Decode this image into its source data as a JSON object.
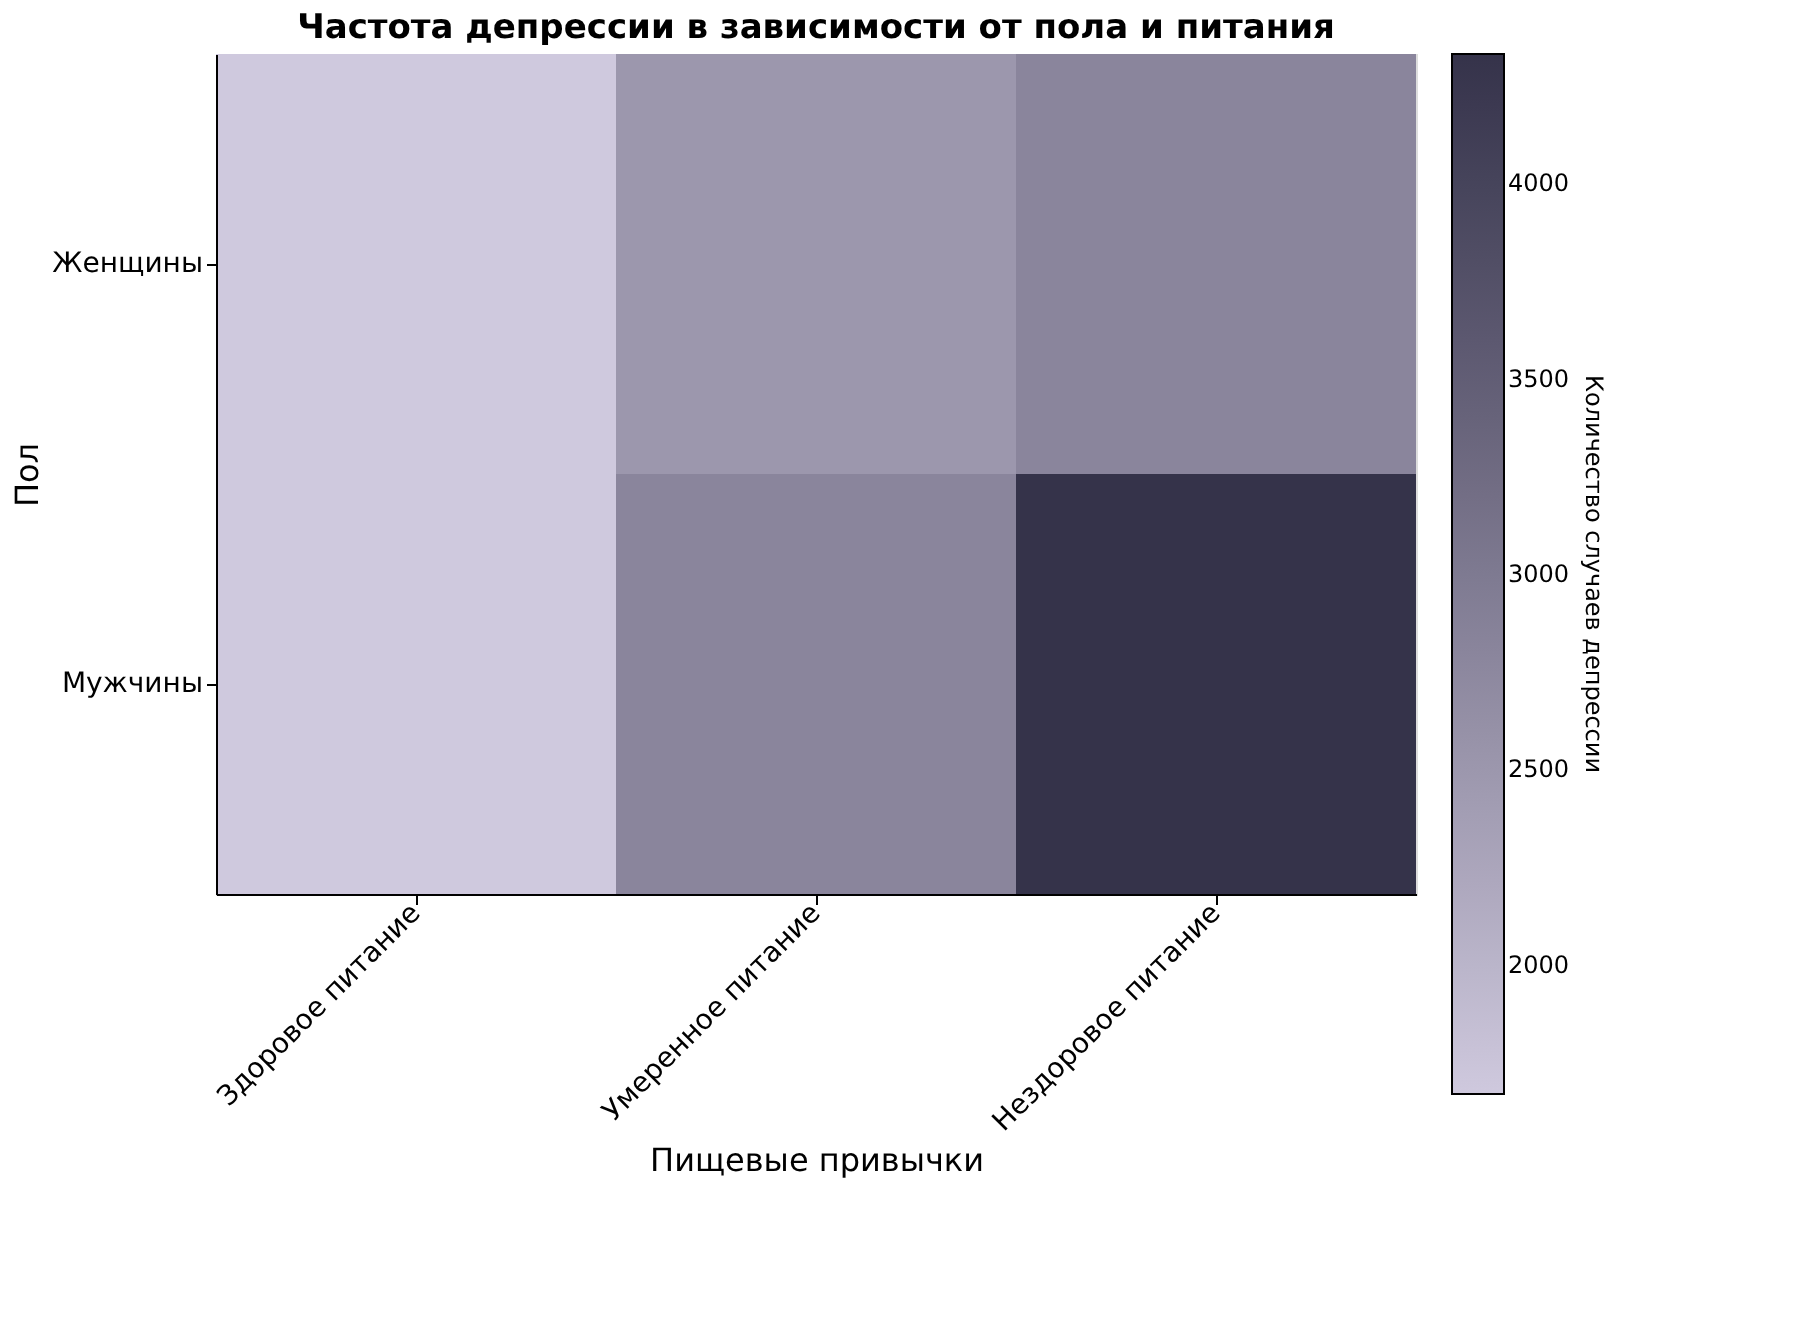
{
  "chart_data": {
    "type": "heatmap",
    "title": "Частота депрессии в зависимости от пола и питания",
    "xlabel": "Пищевые привычки",
    "ylabel": "Пол",
    "clabel": "Количество случаев депрессии",
    "categories": [
      "Здоровое питание",
      "Умеренное питание",
      "Нездоровое питание"
    ],
    "y_categories": [
      "Женщины",
      "Мужчины"
    ],
    "cells": [
      [
        1670,
        2500,
        2800
      ],
      [
        1670,
        2800,
        4330
      ]
    ],
    "clim": [
      1670,
      4330
    ],
    "cticks": [
      2000,
      2500,
      3000,
      3500,
      4000
    ]
  }
}
